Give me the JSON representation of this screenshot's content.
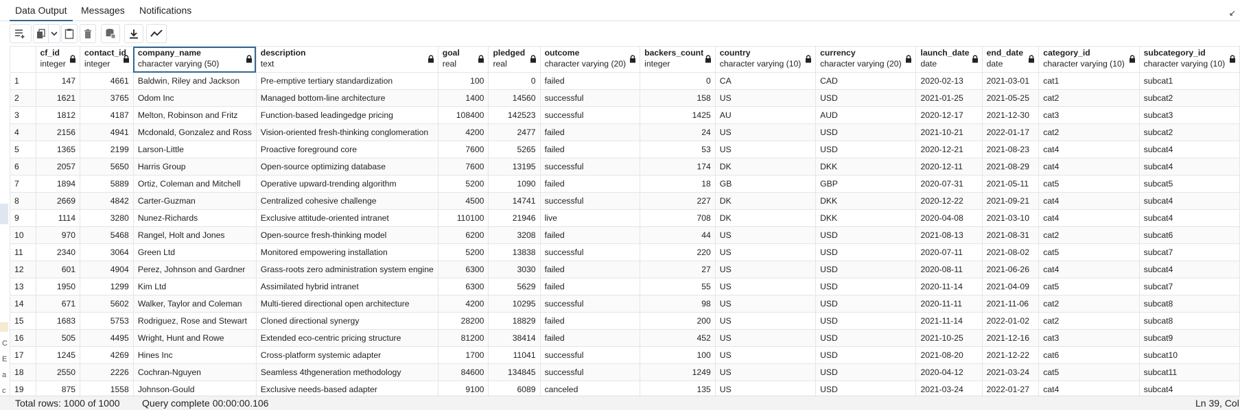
{
  "tabs": [
    "Data Output",
    "Messages",
    "Notifications"
  ],
  "toolbar": {
    "buttons": [
      "add-row",
      "copy",
      "copy-dropdown",
      "paste",
      "delete",
      "save-data",
      "download",
      "graph"
    ]
  },
  "columns": [
    {
      "name": "",
      "type": ""
    },
    {
      "name": "cf_id",
      "type": "integer"
    },
    {
      "name": "contact_id",
      "type": "integer"
    },
    {
      "name": "company_name",
      "type": "character varying (50)"
    },
    {
      "name": "description",
      "type": "text"
    },
    {
      "name": "goal",
      "type": "real"
    },
    {
      "name": "pledged",
      "type": "real"
    },
    {
      "name": "outcome",
      "type": "character varying (20)"
    },
    {
      "name": "backers_count",
      "type": "integer"
    },
    {
      "name": "country",
      "type": "character varying (10)"
    },
    {
      "name": "currency",
      "type": "character varying (20)"
    },
    {
      "name": "launch_date",
      "type": "date"
    },
    {
      "name": "end_date",
      "type": "date"
    },
    {
      "name": "category_id",
      "type": "character varying (10)"
    },
    {
      "name": "subcategory_id",
      "type": "character varying (10)"
    }
  ],
  "rows": [
    [
      "1",
      "147",
      "4661",
      "Baldwin, Riley and Jackson",
      "Pre-emptive tertiary standardization",
      "100",
      "0",
      "failed",
      "0",
      "CA",
      "CAD",
      "2020-02-13",
      "2021-03-01",
      "cat1",
      "subcat1"
    ],
    [
      "2",
      "1621",
      "3765",
      "Odom Inc",
      "Managed bottom-line architecture",
      "1400",
      "14560",
      "successful",
      "158",
      "US",
      "USD",
      "2021-01-25",
      "2021-05-25",
      "cat2",
      "subcat2"
    ],
    [
      "3",
      "1812",
      "4187",
      "Melton, Robinson and Fritz",
      "Function-based leadingedge pricing",
      "108400",
      "142523",
      "successful",
      "1425",
      "AU",
      "AUD",
      "2020-12-17",
      "2021-12-30",
      "cat3",
      "subcat3"
    ],
    [
      "4",
      "2156",
      "4941",
      "Mcdonald, Gonzalez and Ross",
      "Vision-oriented fresh-thinking conglomeration",
      "4200",
      "2477",
      "failed",
      "24",
      "US",
      "USD",
      "2021-10-21",
      "2022-01-17",
      "cat2",
      "subcat2"
    ],
    [
      "5",
      "1365",
      "2199",
      "Larson-Little",
      "Proactive foreground core",
      "7600",
      "5265",
      "failed",
      "53",
      "US",
      "USD",
      "2020-12-21",
      "2021-08-23",
      "cat4",
      "subcat4"
    ],
    [
      "6",
      "2057",
      "5650",
      "Harris Group",
      "Open-source optimizing database",
      "7600",
      "13195",
      "successful",
      "174",
      "DK",
      "DKK",
      "2020-12-11",
      "2021-08-29",
      "cat4",
      "subcat4"
    ],
    [
      "7",
      "1894",
      "5889",
      "Ortiz, Coleman and Mitchell",
      "Operative upward-trending algorithm",
      "5200",
      "1090",
      "failed",
      "18",
      "GB",
      "GBP",
      "2020-07-31",
      "2021-05-11",
      "cat5",
      "subcat5"
    ],
    [
      "8",
      "2669",
      "4842",
      "Carter-Guzman",
      "Centralized cohesive challenge",
      "4500",
      "14741",
      "successful",
      "227",
      "DK",
      "DKK",
      "2020-12-22",
      "2021-09-21",
      "cat4",
      "subcat4"
    ],
    [
      "9",
      "1114",
      "3280",
      "Nunez-Richards",
      "Exclusive attitude-oriented intranet",
      "110100",
      "21946",
      "live",
      "708",
      "DK",
      "DKK",
      "2020-04-08",
      "2021-03-10",
      "cat4",
      "subcat4"
    ],
    [
      "10",
      "970",
      "5468",
      "Rangel, Holt and Jones",
      "Open-source fresh-thinking model",
      "6200",
      "3208",
      "failed",
      "44",
      "US",
      "USD",
      "2021-08-13",
      "2021-08-31",
      "cat2",
      "subcat6"
    ],
    [
      "11",
      "2340",
      "3064",
      "Green Ltd",
      "Monitored empowering installation",
      "5200",
      "13838",
      "successful",
      "220",
      "US",
      "USD",
      "2020-07-11",
      "2021-08-02",
      "cat5",
      "subcat7"
    ],
    [
      "12",
      "601",
      "4904",
      "Perez, Johnson and Gardner",
      "Grass-roots zero administration system engine",
      "6300",
      "3030",
      "failed",
      "27",
      "US",
      "USD",
      "2020-08-11",
      "2021-06-26",
      "cat4",
      "subcat4"
    ],
    [
      "13",
      "1950",
      "1299",
      "Kim Ltd",
      "Assimilated hybrid intranet",
      "6300",
      "5629",
      "failed",
      "55",
      "US",
      "USD",
      "2020-11-14",
      "2021-04-09",
      "cat5",
      "subcat7"
    ],
    [
      "14",
      "671",
      "5602",
      "Walker, Taylor and Coleman",
      "Multi-tiered directional open architecture",
      "4200",
      "10295",
      "successful",
      "98",
      "US",
      "USD",
      "2020-11-11",
      "2021-11-06",
      "cat2",
      "subcat8"
    ],
    [
      "15",
      "1683",
      "5753",
      "Rodriguez, Rose and Stewart",
      "Cloned directional synergy",
      "28200",
      "18829",
      "failed",
      "200",
      "US",
      "USD",
      "2021-11-14",
      "2022-01-02",
      "cat2",
      "subcat8"
    ],
    [
      "16",
      "505",
      "4495",
      "Wright, Hunt and Rowe",
      "Extended eco-centric pricing structure",
      "81200",
      "38414",
      "failed",
      "452",
      "US",
      "USD",
      "2021-10-25",
      "2021-12-16",
      "cat3",
      "subcat9"
    ],
    [
      "17",
      "1245",
      "4269",
      "Hines Inc",
      "Cross-platform systemic adapter",
      "1700",
      "11041",
      "successful",
      "100",
      "US",
      "USD",
      "2021-08-20",
      "2021-12-22",
      "cat6",
      "subcat10"
    ],
    [
      "18",
      "2550",
      "2226",
      "Cochran-Nguyen",
      "Seamless 4thgeneration methodology",
      "84600",
      "134845",
      "successful",
      "1249",
      "US",
      "USD",
      "2020-04-12",
      "2021-03-24",
      "cat5",
      "subcat11"
    ],
    [
      "19",
      "875",
      "1558",
      "Johnson-Gould",
      "Exclusive needs-based adapter",
      "9100",
      "6089",
      "canceled",
      "135",
      "US",
      "USD",
      "2021-03-24",
      "2022-01-27",
      "cat4",
      "subcat4"
    ]
  ],
  "status": {
    "total_rows": "Total rows: 1000 of 1000",
    "query": "Query complete 00:00:00.106",
    "position": "Ln 39, Col"
  },
  "edge_letters": [
    "C",
    "E",
    "a",
    "c"
  ],
  "colors": {
    "accent": "#326690",
    "grid_border": "#e3e5ea"
  }
}
